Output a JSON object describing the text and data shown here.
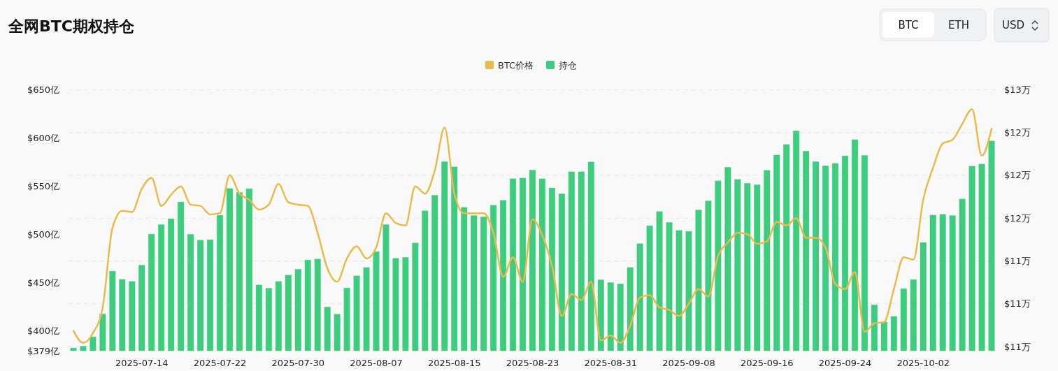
{
  "chart_data": {
    "type": "bar",
    "title": "全网BTC期权持仓",
    "annotations": [
      "BTC",
      "ETH",
      "USD"
    ],
    "x": [
      "2025-07-07",
      "2025-07-08",
      "2025-07-09",
      "2025-07-10",
      "2025-07-11",
      "2025-07-12",
      "2025-07-13",
      "2025-07-14",
      "2025-07-15",
      "2025-07-16",
      "2025-07-17",
      "2025-07-18",
      "2025-07-19",
      "2025-07-20",
      "2025-07-21",
      "2025-07-22",
      "2025-07-23",
      "2025-07-24",
      "2025-07-25",
      "2025-07-26",
      "2025-07-27",
      "2025-07-28",
      "2025-07-29",
      "2025-07-30",
      "2025-07-31",
      "2025-08-01",
      "2025-08-02",
      "2025-08-03",
      "2025-08-04",
      "2025-08-05",
      "2025-08-06",
      "2025-08-07",
      "2025-08-08",
      "2025-08-09",
      "2025-08-10",
      "2025-08-11",
      "2025-08-12",
      "2025-08-13",
      "2025-08-14",
      "2025-08-15",
      "2025-08-16",
      "2025-08-17",
      "2025-08-18",
      "2025-08-19",
      "2025-08-20",
      "2025-08-21",
      "2025-08-22",
      "2025-08-23",
      "2025-08-24",
      "2025-08-25",
      "2025-08-26",
      "2025-08-27",
      "2025-08-28",
      "2025-08-29",
      "2025-08-30",
      "2025-08-31",
      "2025-09-01",
      "2025-09-02",
      "2025-09-03",
      "2025-09-04",
      "2025-09-05",
      "2025-09-06",
      "2025-09-07",
      "2025-09-08",
      "2025-09-09",
      "2025-09-10",
      "2025-09-11",
      "2025-09-12",
      "2025-09-13",
      "2025-09-14",
      "2025-09-15",
      "2025-09-16",
      "2025-09-17",
      "2025-09-18",
      "2025-09-19",
      "2025-09-20",
      "2025-09-21",
      "2025-09-22",
      "2025-09-23",
      "2025-09-24",
      "2025-09-25",
      "2025-09-26",
      "2025-09-27",
      "2025-09-28",
      "2025-09-29",
      "2025-09-30",
      "2025-10-01",
      "2025-10-02",
      "2025-10-03",
      "2025-10-04",
      "2025-10-05",
      "2025-10-06",
      "2025-10-07",
      "2025-10-08",
      "2025-10-09"
    ],
    "series": [
      {
        "name": "BTC价格",
        "type": "line",
        "axis": "y2",
        "color": "#ecb94b",
        "values": [
          10.83,
          10.73,
          10.81,
          11.02,
          11.67,
          11.81,
          11.8,
          11.99,
          12.08,
          11.85,
          11.94,
          12.01,
          11.86,
          11.85,
          11.78,
          11.79,
          12.1,
          11.95,
          11.9,
          11.82,
          11.86,
          12.03,
          11.88,
          11.86,
          11.85,
          11.63,
          11.34,
          11.23,
          11.42,
          11.52,
          11.42,
          11.51,
          11.79,
          11.71,
          11.69,
          12.01,
          11.95,
          12.14,
          12.49,
          11.95,
          11.79,
          11.79,
          11.79,
          11.63,
          11.27,
          11.43,
          11.23,
          11.74,
          11.61,
          11.36,
          10.95,
          11.13,
          11.08,
          11.23,
          10.75,
          10.79,
          10.73,
          10.87,
          11.1,
          11.12,
          11.02,
          11.0,
          10.95,
          11.05,
          11.17,
          11.11,
          11.44,
          11.55,
          11.63,
          11.62,
          11.54,
          11.56,
          11.72,
          11.69,
          11.75,
          11.59,
          11.59,
          11.51,
          11.21,
          11.17,
          11.31,
          10.82,
          10.89,
          10.9,
          11.17,
          11.43,
          11.41,
          11.9,
          12.16,
          12.36,
          12.39,
          12.52,
          12.64,
          12.26,
          12.48
        ]
      },
      {
        "name": "持仓",
        "color": "#3ecc7e",
        "values": [
          382.5,
          384.4,
          394.1,
          417.7,
          462.1,
          453.7,
          451.5,
          468.4,
          500.5,
          510.4,
          516.4,
          533.8,
          500.3,
          494.3,
          494.7,
          520.1,
          547.9,
          543.7,
          547.6,
          447.9,
          444.5,
          451.5,
          458.1,
          464.1,
          473.7,
          474.7,
          425.0,
          417.5,
          444.7,
          457.3,
          466.0,
          482.4,
          510.4,
          475.5,
          476.4,
          491.4,
          524.7,
          540.8,
          575.6,
          570.3,
          528.3,
          519.8,
          518.4,
          530.5,
          535.6,
          558.0,
          558.7,
          566.9,
          558.0,
          548.3,
          542.3,
          565.2,
          565.2,
          575.4,
          453.2,
          450.3,
          448.9,
          466.0,
          490.7,
          509.2,
          524.0,
          512.6,
          504.4,
          503.4,
          525.6,
          535.0,
          555.8,
          569.8,
          557.3,
          553.2,
          551.7,
          566.7,
          582.6,
          593.5,
          607.5,
          586.5,
          575.6,
          571.3,
          573.9,
          581.6,
          598.5,
          582.1,
          427.2,
          409.5,
          415.3,
          444.0,
          453.4,
          491.8,
          520.3,
          521.1,
          519.8,
          537.0,
          571.0,
          573.2,
          597.1
        ]
      }
    ],
    "xlim": [
      "2025-07-06T12:00",
      "2025-10-09T12:00"
    ],
    "xticks": [
      "2025-07-14",
      "2025-07-22",
      "2025-07-30",
      "2025-08-07",
      "2025-08-15",
      "2025-08-23",
      "2025-08-31",
      "2025-09-08",
      "2025-09-16",
      "2025-09-24",
      "2025-10-02"
    ],
    "ylim": [
      379,
      650
    ],
    "yticks": [
      {
        "value": 379,
        "label": "$379亿"
      },
      {
        "value": 400,
        "label": "$400亿"
      },
      {
        "value": 450,
        "label": "$450亿"
      },
      {
        "value": 500,
        "label": "$500亿"
      },
      {
        "value": 550,
        "label": "$550亿"
      },
      {
        "value": 600,
        "label": "$600亿"
      },
      {
        "value": 650,
        "label": "$650亿"
      }
    ],
    "y2lim": [
      10.663,
      12.8
    ],
    "y2ticks": [
      {
        "value": 10.7,
        "label": "$11万"
      },
      {
        "value": 11.05,
        "label": "$11万"
      },
      {
        "value": 11.4,
        "label": "$11万"
      },
      {
        "value": 11.75,
        "label": "$12万"
      },
      {
        "value": 12.1,
        "label": "$12万"
      },
      {
        "value": 12.45,
        "label": "$12万"
      },
      {
        "value": 12.8,
        "label": "$13万"
      }
    ],
    "grid": "y2",
    "legend": "top",
    "marker": "none",
    "line_style": "solid"
  }
}
